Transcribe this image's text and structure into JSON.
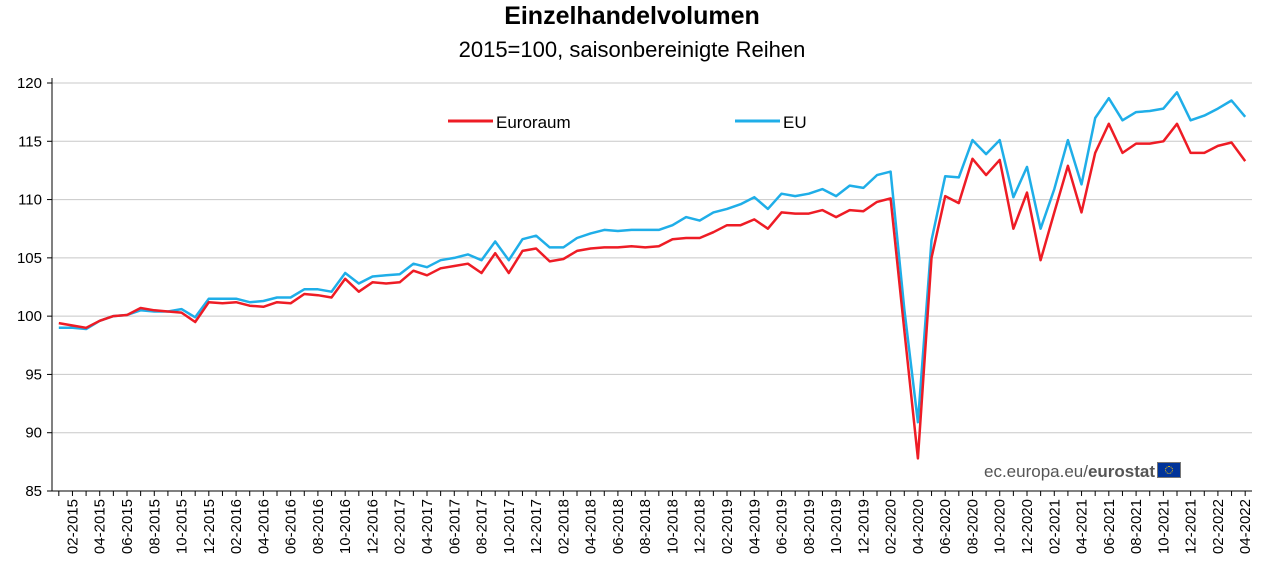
{
  "chart_data": {
    "type": "line",
    "title": "Einzelhandelvolumen",
    "subtitle": "2015=100, saisonbereinigte Reihen",
    "ylim": [
      85,
      120
    ],
    "yticks": [
      85,
      90,
      95,
      100,
      105,
      110,
      115,
      120
    ],
    "grid": true,
    "legend_position": "top-left",
    "tick_labels": [
      "02-2015",
      "04-2015",
      "06-2015",
      "08-2015",
      "10-2015",
      "12-2015",
      "02-2016",
      "04-2016",
      "06-2016",
      "08-2016",
      "10-2016",
      "12-2016",
      "02-2017",
      "04-2017",
      "06-2017",
      "08-2017",
      "10-2017",
      "12-2017",
      "02-2018",
      "04-2018",
      "06-2018",
      "08-2018",
      "10-2018",
      "12-2018",
      "02-2019",
      "04-2019",
      "06-2019",
      "08-2019",
      "10-2019",
      "12-2019",
      "02-2020",
      "04-2020",
      "06-2020",
      "08-2020",
      "10-2020",
      "12-2020",
      "02-2021",
      "04-2021",
      "06-2021",
      "08-2021",
      "10-2021",
      "12-2021",
      "02-2022",
      "04-2022"
    ],
    "x": [
      "01-2015",
      "02-2015",
      "03-2015",
      "04-2015",
      "05-2015",
      "06-2015",
      "07-2015",
      "08-2015",
      "09-2015",
      "10-2015",
      "11-2015",
      "12-2015",
      "01-2016",
      "02-2016",
      "03-2016",
      "04-2016",
      "05-2016",
      "06-2016",
      "07-2016",
      "08-2016",
      "09-2016",
      "10-2016",
      "11-2016",
      "12-2016",
      "01-2017",
      "02-2017",
      "03-2017",
      "04-2017",
      "05-2017",
      "06-2017",
      "07-2017",
      "08-2017",
      "09-2017",
      "10-2017",
      "11-2017",
      "12-2017",
      "01-2018",
      "02-2018",
      "03-2018",
      "04-2018",
      "05-2018",
      "06-2018",
      "07-2018",
      "08-2018",
      "09-2018",
      "10-2018",
      "11-2018",
      "12-2018",
      "01-2019",
      "02-2019",
      "03-2019",
      "04-2019",
      "05-2019",
      "06-2019",
      "07-2019",
      "08-2019",
      "09-2019",
      "10-2019",
      "11-2019",
      "12-2019",
      "01-2020",
      "02-2020",
      "03-2020",
      "04-2020",
      "05-2020",
      "06-2020",
      "07-2020",
      "08-2020",
      "09-2020",
      "10-2020",
      "11-2020",
      "12-2020",
      "01-2021",
      "02-2021",
      "03-2021",
      "04-2021",
      "05-2021",
      "06-2021",
      "07-2021",
      "08-2021",
      "09-2021",
      "10-2021",
      "11-2021",
      "12-2021",
      "01-2022",
      "02-2022",
      "03-2022",
      "04-2022"
    ],
    "series": [
      {
        "name": "Euroraum",
        "color": "#ee1c25",
        "values": [
          99.4,
          99.2,
          99.0,
          99.6,
          100.0,
          100.1,
          100.7,
          100.5,
          100.4,
          100.3,
          99.5,
          101.2,
          101.1,
          101.2,
          100.9,
          100.8,
          101.2,
          101.1,
          101.9,
          101.8,
          101.6,
          103.2,
          102.1,
          102.9,
          102.8,
          102.9,
          103.9,
          103.5,
          104.1,
          104.3,
          104.5,
          103.7,
          105.4,
          103.7,
          105.6,
          105.8,
          104.7,
          104.9,
          105.6,
          105.8,
          105.9,
          105.9,
          106.0,
          105.9,
          106.0,
          106.6,
          106.7,
          106.7,
          107.2,
          107.8,
          107.8,
          108.3,
          107.5,
          108.9,
          108.8,
          108.8,
          109.1,
          108.5,
          109.1,
          109.0,
          109.8,
          110.1,
          98.8,
          87.8,
          105.0,
          110.3,
          109.7,
          113.5,
          112.1,
          113.4,
          107.5,
          110.6,
          104.8,
          108.9,
          112.9,
          108.9,
          114.0,
          116.5,
          114.0,
          114.8,
          114.8,
          115.0,
          116.5,
          114.0,
          114.0,
          114.6,
          114.9,
          113.3
        ]
      },
      {
        "name": "EU",
        "color": "#1faee8",
        "values": [
          99.0,
          99.0,
          98.9,
          99.6,
          100.0,
          100.1,
          100.5,
          100.4,
          100.4,
          100.6,
          99.9,
          101.5,
          101.5,
          101.5,
          101.2,
          101.3,
          101.6,
          101.6,
          102.3,
          102.3,
          102.1,
          103.7,
          102.8,
          103.4,
          103.5,
          103.6,
          104.5,
          104.2,
          104.8,
          105.0,
          105.3,
          104.8,
          106.4,
          104.8,
          106.6,
          106.9,
          105.9,
          105.9,
          106.7,
          107.1,
          107.4,
          107.3,
          107.4,
          107.4,
          107.4,
          107.8,
          108.5,
          108.2,
          108.9,
          109.2,
          109.6,
          110.2,
          109.2,
          110.5,
          110.3,
          110.5,
          110.9,
          110.3,
          111.2,
          111.0,
          112.1,
          112.4,
          100.6,
          90.9,
          106.5,
          112.0,
          111.9,
          115.1,
          113.9,
          115.1,
          110.2,
          112.8,
          107.5,
          110.9,
          115.1,
          111.3,
          117.0,
          118.7,
          116.8,
          117.5,
          117.6,
          117.8,
          119.2,
          116.8,
          117.2,
          117.8,
          118.5,
          117.1
        ]
      }
    ]
  },
  "source": {
    "site": "ec.europa.eu/",
    "brand": "eurostat"
  }
}
